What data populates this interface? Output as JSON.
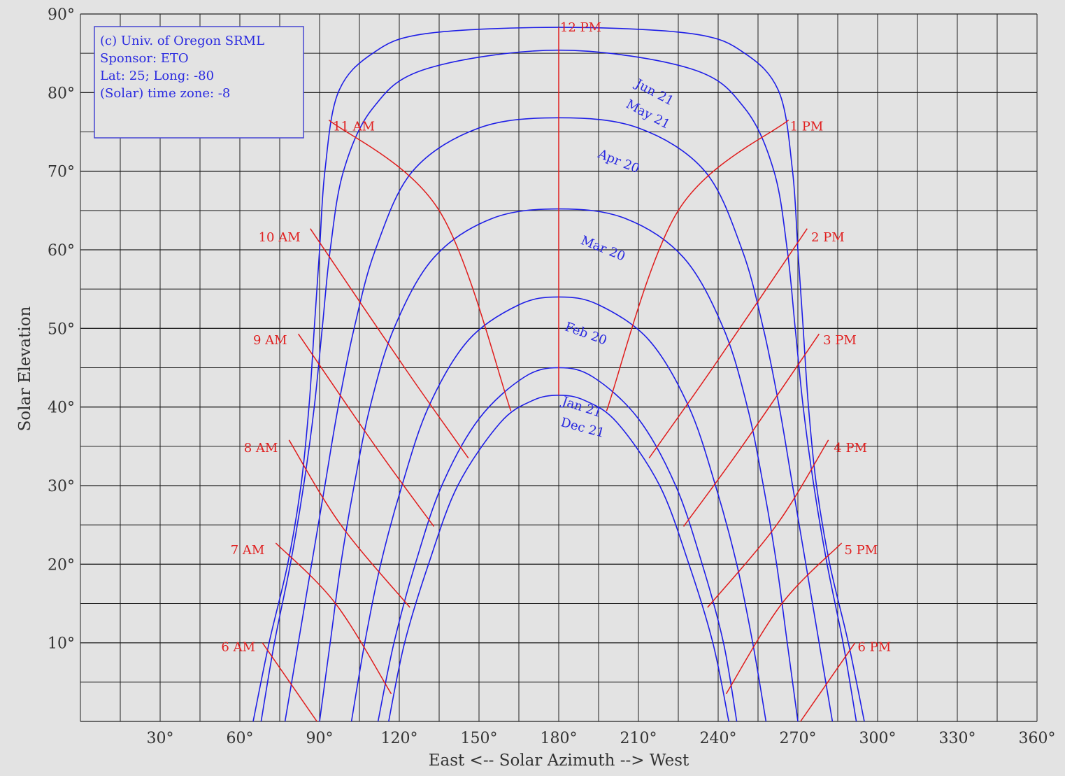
{
  "chart_data": {
    "type": "line",
    "title": "",
    "xlabel": "East <-- Solar Azimuth --> West",
    "ylabel": "Solar Elevation",
    "xlim": [
      0,
      360
    ],
    "ylim": [
      0,
      90
    ],
    "x_ticks": [
      30,
      60,
      90,
      120,
      150,
      180,
      210,
      240,
      270,
      300,
      330,
      360
    ],
    "x_tick_labels": [
      "30°",
      "60°",
      "90°",
      "120°",
      "150°",
      "180°",
      "210°",
      "240°",
      "270°",
      "300°",
      "330°",
      "360°"
    ],
    "y_ticks": [
      10,
      20,
      30,
      40,
      50,
      60,
      70,
      80,
      90
    ],
    "y_tick_labels": [
      "10°",
      "20°",
      "30°",
      "40°",
      "50°",
      "60°",
      "70°",
      "80°",
      "90°"
    ],
    "grid": true,
    "info_box": [
      "(c) Univ. of Oregon SRML",
      "Sponsor: ETO",
      "Lat: 25; Long: -80",
      "(Solar) time zone: -8"
    ],
    "date_series": [
      {
        "name": "Jun 21",
        "points": [
          [
            65,
            0
          ],
          [
            71,
            10
          ],
          [
            78,
            20
          ],
          [
            83,
            30
          ],
          [
            86,
            40
          ],
          [
            88,
            50
          ],
          [
            90,
            60
          ],
          [
            92,
            70
          ],
          [
            97,
            80
          ],
          [
            110,
            85
          ],
          [
            130,
            87.5
          ],
          [
            180,
            88.3
          ],
          [
            230,
            87.5
          ],
          [
            250,
            85
          ],
          [
            263,
            80
          ],
          [
            268,
            70
          ],
          [
            270,
            60
          ],
          [
            272,
            50
          ],
          [
            274,
            40
          ],
          [
            277,
            30
          ],
          [
            282,
            20
          ],
          [
            289,
            10
          ],
          [
            295,
            0
          ]
        ]
      },
      {
        "name": "May 21",
        "points": [
          [
            68,
            0
          ],
          [
            73,
            10
          ],
          [
            79,
            20
          ],
          [
            84,
            30
          ],
          [
            88,
            40
          ],
          [
            91,
            50
          ],
          [
            94,
            60
          ],
          [
            99,
            70
          ],
          [
            110,
            78
          ],
          [
            130,
            83
          ],
          [
            180,
            85.4
          ],
          [
            230,
            83
          ],
          [
            250,
            78
          ],
          [
            261,
            70
          ],
          [
            266,
            60
          ],
          [
            269,
            50
          ],
          [
            272,
            40
          ],
          [
            276,
            30
          ],
          [
            281,
            20
          ],
          [
            287,
            10
          ],
          [
            292,
            0
          ]
        ]
      },
      {
        "name": "Apr 20",
        "points": [
          [
            77,
            0
          ],
          [
            82,
            10
          ],
          [
            87,
            20
          ],
          [
            92,
            30
          ],
          [
            97,
            40
          ],
          [
            103,
            50
          ],
          [
            111,
            60
          ],
          [
            125,
            70
          ],
          [
            150,
            75.5
          ],
          [
            180,
            76.8
          ],
          [
            210,
            75.5
          ],
          [
            235,
            70
          ],
          [
            249,
            60
          ],
          [
            257,
            50
          ],
          [
            263,
            40
          ],
          [
            268,
            30
          ],
          [
            273,
            20
          ],
          [
            278,
            10
          ],
          [
            283,
            0
          ]
        ]
      },
      {
        "name": "Mar 20",
        "points": [
          [
            90,
            0
          ],
          [
            94,
            10
          ],
          [
            98,
            20
          ],
          [
            103,
            30
          ],
          [
            109,
            40
          ],
          [
            118,
            50
          ],
          [
            133,
            59
          ],
          [
            155,
            64
          ],
          [
            180,
            65.2
          ],
          [
            205,
            64
          ],
          [
            227,
            59
          ],
          [
            242,
            50
          ],
          [
            251,
            40
          ],
          [
            257,
            30
          ],
          [
            262,
            20
          ],
          [
            266,
            10
          ],
          [
            270,
            0
          ]
        ]
      },
      {
        "name": "Feb 20",
        "points": [
          [
            102,
            0
          ],
          [
            107,
            10
          ],
          [
            113,
            20
          ],
          [
            121,
            30
          ],
          [
            131,
            40
          ],
          [
            146,
            48.5
          ],
          [
            165,
            53
          ],
          [
            180,
            54
          ],
          [
            195,
            53
          ],
          [
            214,
            48.5
          ],
          [
            229,
            40
          ],
          [
            239,
            30
          ],
          [
            247,
            20
          ],
          [
            253,
            10
          ],
          [
            258,
            0
          ]
        ]
      },
      {
        "name": "Jan 21",
        "points": [
          [
            112,
            0
          ],
          [
            118,
            10
          ],
          [
            126,
            20
          ],
          [
            136,
            30
          ],
          [
            150,
            38.5
          ],
          [
            167,
            43.8
          ],
          [
            180,
            45
          ],
          [
            193,
            43.8
          ],
          [
            210,
            38.5
          ],
          [
            224,
            30
          ],
          [
            234,
            20
          ],
          [
            242,
            10
          ],
          [
            247,
            0
          ]
        ]
      },
      {
        "name": "Dec 21",
        "points": [
          [
            116,
            0
          ],
          [
            122,
            10
          ],
          [
            131,
            20
          ],
          [
            142,
            30
          ],
          [
            158,
            38
          ],
          [
            170,
            40.8
          ],
          [
            180,
            41.5
          ],
          [
            190,
            40.8
          ],
          [
            202,
            38
          ],
          [
            218,
            30
          ],
          [
            229,
            20
          ],
          [
            238,
            10
          ],
          [
            244,
            0
          ]
        ]
      }
    ],
    "hour_series": [
      {
        "name": "6 AM",
        "points": [
          [
            68.5,
            10
          ],
          [
            89,
            0
          ]
        ]
      },
      {
        "name": "7 AM",
        "points": [
          [
            73.5,
            22.7
          ],
          [
            96,
            15
          ],
          [
            117,
            3.5
          ]
        ]
      },
      {
        "name": "8 AM",
        "points": [
          [
            78.5,
            35.8
          ],
          [
            98,
            25
          ],
          [
            124,
            14.5
          ]
        ]
      },
      {
        "name": "9 AM",
        "points": [
          [
            82,
            49.3
          ],
          [
            111,
            35
          ],
          [
            133,
            24.8
          ]
        ]
      },
      {
        "name": "10 AM",
        "points": [
          [
            86.5,
            62.7
          ],
          [
            122,
            45
          ],
          [
            146,
            33.5
          ]
        ]
      },
      {
        "name": "11 AM",
        "points": [
          [
            93.5,
            76.5
          ],
          [
            135,
            65
          ],
          [
            162,
            39.5
          ]
        ]
      },
      {
        "name": "12 PM",
        "points": [
          [
            180,
            88.3
          ],
          [
            180,
            41.5
          ]
        ]
      },
      {
        "name": "1 PM",
        "points": [
          [
            266.5,
            76.5
          ],
          [
            225,
            65
          ],
          [
            198,
            39.5
          ]
        ]
      },
      {
        "name": "2 PM",
        "points": [
          [
            273.5,
            62.7
          ],
          [
            238,
            45
          ],
          [
            214,
            33.5
          ]
        ]
      },
      {
        "name": "3 PM",
        "points": [
          [
            278,
            49.3
          ],
          [
            249,
            35
          ],
          [
            227,
            24.8
          ]
        ]
      },
      {
        "name": "4 PM",
        "points": [
          [
            281.5,
            35.8
          ],
          [
            262,
            25
          ],
          [
            236,
            14.5
          ]
        ]
      },
      {
        "name": "5 PM",
        "points": [
          [
            286.5,
            22.7
          ],
          [
            264,
            15
          ],
          [
            243,
            3.5
          ]
        ]
      },
      {
        "name": "6 PM",
        "points": [
          [
            291.5,
            10
          ],
          [
            271,
            0
          ]
        ]
      }
    ],
    "hour_labels": [
      {
        "text": "6 AM",
        "x": 53,
        "y": 9.5
      },
      {
        "text": "7 AM",
        "x": 56.5,
        "y": 21.8
      },
      {
        "text": "8 AM",
        "x": 61.5,
        "y": 34.8
      },
      {
        "text": "9 AM",
        "x": 65,
        "y": 48.5
      },
      {
        "text": "10 AM",
        "x": 67,
        "y": 61.6
      },
      {
        "text": "11 AM",
        "x": 95,
        "y": 75.7
      },
      {
        "text": "12 PM",
        "x": 180.5,
        "y": 88.3
      },
      {
        "text": "1 PM",
        "x": 267,
        "y": 75.7
      },
      {
        "text": "2 PM",
        "x": 275,
        "y": 61.6
      },
      {
        "text": "3 PM",
        "x": 279.5,
        "y": 48.5
      },
      {
        "text": "4 PM",
        "x": 283.5,
        "y": 34.8
      },
      {
        "text": "5 PM",
        "x": 287.5,
        "y": 21.8
      },
      {
        "text": "6 PM",
        "x": 292.5,
        "y": 9.5
      }
    ],
    "date_labels": [
      {
        "text": "Jun 21",
        "x": 208.5,
        "y": 80.8,
        "angle": 28
      },
      {
        "text": "May 21",
        "x": 205,
        "y": 78.2,
        "angle": 28
      },
      {
        "text": "Apr 20",
        "x": 194.5,
        "y": 71.8,
        "angle": 22
      },
      {
        "text": "Mar 20",
        "x": 188,
        "y": 60.8,
        "angle": 22
      },
      {
        "text": "Feb 20",
        "x": 182,
        "y": 49.8,
        "angle": 20
      },
      {
        "text": "Jan 21",
        "x": 181,
        "y": 40.3,
        "angle": 18
      },
      {
        "text": "Dec 21",
        "x": 180.5,
        "y": 37.6,
        "angle": 15
      }
    ]
  }
}
